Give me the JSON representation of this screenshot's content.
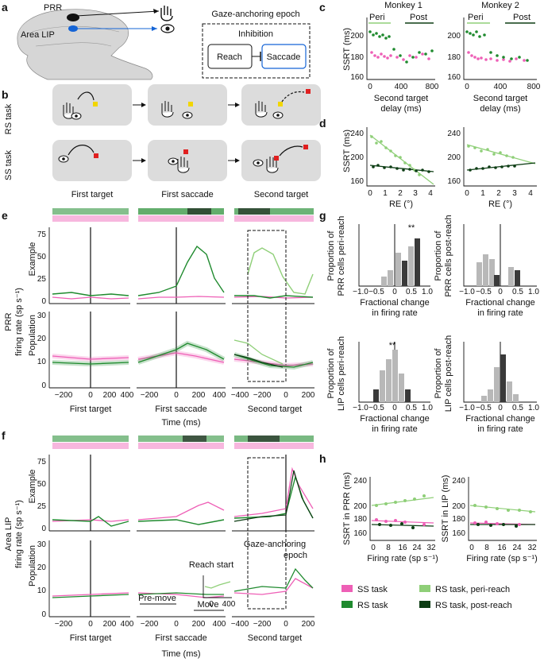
{
  "colors": {
    "ss": "#ee5fb6",
    "rs": "#1f8a2e",
    "rs_peri": "#8fcf78",
    "rs_post": "#0d3d14",
    "lip": "#1464d6",
    "bar_dark": "#3a3a3a",
    "bar_light": "#b8b8b8"
  },
  "panel_letters": {
    "a": "a",
    "b": "b",
    "c": "c",
    "d": "d",
    "e": "e",
    "f": "f",
    "g": "g",
    "h": "h"
  },
  "panel_a": {
    "prr": "PRR",
    "lip": "Area LIP",
    "epoch_title": "Gaze-anchoring epoch",
    "inhibition": "Inhibition",
    "reach": "Reach",
    "saccade": "Saccade"
  },
  "panel_b": {
    "rs_task": "RS task",
    "ss_task": "SS task",
    "col1": "First target",
    "col2": "First saccade",
    "col3": "Second target"
  },
  "panel_c": {
    "monkey1": "Monkey 1",
    "monkey2": "Monkey 2",
    "peri": "Peri",
    "post": "Post",
    "ylabel": "SSRT (ms)",
    "yticks": [
      "160",
      "180",
      "200"
    ],
    "xticks": [
      "0",
      "400",
      "800"
    ],
    "xlabel1": "Second target",
    "xlabel2": "delay (ms)"
  },
  "panel_d": {
    "ylabel": "SSRT (ms)",
    "yticks_m1": [
      "160",
      "200",
      "240"
    ],
    "yticks_m2": [
      "160",
      "200",
      "240"
    ],
    "xticks": [
      "0",
      "1",
      "2",
      "3",
      "4"
    ],
    "xlabel": "RE (°)"
  },
  "panel_e": {
    "region": "PRR",
    "ylabel": "firing rate (sp s⁻¹)",
    "example": "Example",
    "population": "Population",
    "ex_yticks": [
      "0",
      "25",
      "50",
      "75"
    ],
    "pop_yticks": [
      "0",
      "10",
      "20",
      "30"
    ]
  },
  "panel_f": {
    "region": "Area LIP",
    "ylabel": "firing rate (sp s⁻¹)",
    "example": "Example",
    "population": "Population",
    "ex_yticks": [
      "0",
      "25",
      "50",
      "75"
    ],
    "pop_yticks": [
      "0",
      "10",
      "20",
      "30"
    ],
    "reach_start": "Reach start",
    "inset_xticks": [
      "0",
      "400"
    ],
    "gaze1": "Gaze-anchoring",
    "gaze2": "epoch",
    "premove": "Pre-move",
    "move": "Move"
  },
  "time_axis": {
    "ft_ticks": [
      "−200",
      "0",
      "200",
      "400"
    ],
    "fs_ticks": [
      "−200",
      "0",
      "200",
      "400"
    ],
    "st_ticks": [
      "−400",
      "−200",
      "0",
      "200"
    ],
    "ft": "First target",
    "fs": "First saccade",
    "st": "Second target",
    "time": "Time (ms)"
  },
  "panel_g": {
    "sig": "**",
    "ylabel_prr_peri": [
      "Proportion of",
      "PRR cells peri-reach"
    ],
    "ylabel_prr_post": [
      "Proportion of",
      "PRR cells post-reach"
    ],
    "ylabel_lip_peri": [
      "Proportion of",
      "LIP cells peri-reach"
    ],
    "ylabel_lip_post": [
      "Proportion of",
      "LIP cells post-reach"
    ],
    "xlabel": [
      "Fractional change",
      "in firing rate"
    ],
    "xticks": [
      "−1.0",
      "−0.5",
      "0",
      "0.5",
      "1.0"
    ],
    "yticks": [
      "0",
      "0.1",
      "0.2",
      "0.3"
    ]
  },
  "panel_h": {
    "ylabel_prr": "SSRT in PRR (ms)",
    "ylabel_lip": "SSRT in LIP (ms)",
    "yticks": [
      "160",
      "180",
      "200",
      "240"
    ],
    "xticks": [
      "0",
      "8",
      "16",
      "24",
      "32"
    ],
    "xlabel": "Firing rate (sp s⁻¹)"
  },
  "legend": {
    "ss": "SS task",
    "rs": "RS task",
    "peri": "RS task, peri-reach",
    "post": "RS task, post-reach"
  }
}
